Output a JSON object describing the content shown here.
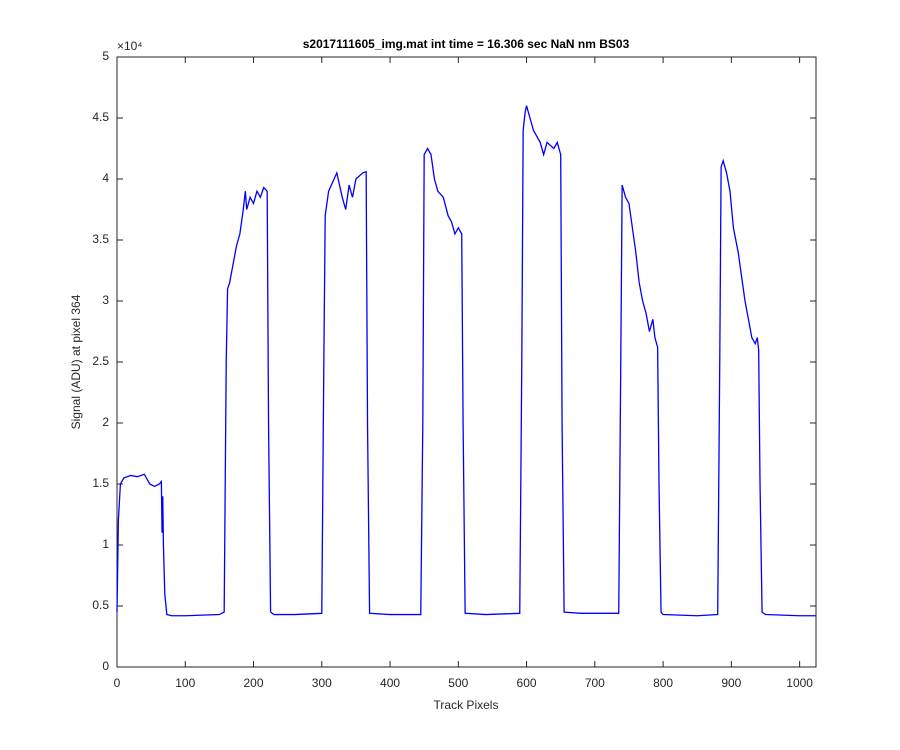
{
  "chart_data": {
    "type": "line",
    "title": "s2017111605_img.mat int time = 16.306 sec  NaN nm BS03",
    "x_label": "Track Pixels",
    "y_label": "Signal (ADU) at pixel 364",
    "y_multiplier": "×10⁴",
    "xlim": [
      0,
      1024
    ],
    "ylim": [
      0,
      5
    ],
    "xticks": [
      0,
      100,
      200,
      300,
      400,
      500,
      600,
      700,
      800,
      900,
      1000
    ],
    "yticks": [
      0,
      0.5,
      1,
      1.5,
      2,
      2.5,
      3,
      3.5,
      4,
      4.5,
      5
    ],
    "grid": false,
    "x": [
      0,
      2,
      5,
      10,
      20,
      30,
      40,
      48,
      55,
      62,
      65,
      66,
      67,
      68,
      70,
      73,
      80,
      100,
      150,
      157,
      160,
      162,
      165,
      170,
      175,
      180,
      185,
      188,
      190,
      195,
      200,
      205,
      210,
      215,
      220,
      222,
      225,
      230,
      260,
      300,
      303,
      305,
      310,
      318,
      322,
      330,
      335,
      340,
      345,
      350,
      360,
      365,
      367,
      370,
      400,
      445,
      448,
      450,
      455,
      460,
      465,
      470,
      478,
      485,
      490,
      495,
      500,
      505,
      507,
      510,
      540,
      590,
      593,
      595,
      598,
      600,
      605,
      610,
      615,
      620,
      625,
      630,
      640,
      645,
      650,
      652,
      655,
      680,
      735,
      738,
      740,
      745,
      750,
      755,
      760,
      765,
      770,
      775,
      780,
      785,
      788,
      792,
      794,
      797,
      800,
      850,
      880,
      883,
      885,
      888,
      893,
      898,
      903,
      910,
      915,
      920,
      925,
      930,
      935,
      938,
      940,
      942,
      945,
      950,
      1000,
      1024
    ],
    "series": [
      {
        "color": "#0000ff",
        "values": [
          0.45,
          1.2,
          1.5,
          1.55,
          1.57,
          1.56,
          1.58,
          1.5,
          1.48,
          1.5,
          1.52,
          1.1,
          1.4,
          1.0,
          0.6,
          0.43,
          0.42,
          0.42,
          0.43,
          0.45,
          2.5,
          3.1,
          3.15,
          3.3,
          3.45,
          3.55,
          3.75,
          3.9,
          3.75,
          3.85,
          3.8,
          3.9,
          3.85,
          3.93,
          3.9,
          2.0,
          0.45,
          0.43,
          0.43,
          0.44,
          2.5,
          3.7,
          3.9,
          4.0,
          4.05,
          3.85,
          3.75,
          3.95,
          3.85,
          4.0,
          4.05,
          4.06,
          2.0,
          0.44,
          0.43,
          0.43,
          2.0,
          4.2,
          4.25,
          4.2,
          4.0,
          3.9,
          3.85,
          3.7,
          3.65,
          3.55,
          3.6,
          3.55,
          2.0,
          0.44,
          0.43,
          0.44,
          2.5,
          4.4,
          4.55,
          4.6,
          4.5,
          4.4,
          4.35,
          4.3,
          4.2,
          4.3,
          4.25,
          4.3,
          4.2,
          2.0,
          0.45,
          0.44,
          0.44,
          2.5,
          3.95,
          3.85,
          3.8,
          3.6,
          3.4,
          3.15,
          3.0,
          2.9,
          2.75,
          2.85,
          2.7,
          2.62,
          1.5,
          0.45,
          0.43,
          0.42,
          0.43,
          2.5,
          4.1,
          4.15,
          4.05,
          3.9,
          3.6,
          3.4,
          3.2,
          3.0,
          2.85,
          2.7,
          2.65,
          2.7,
          2.6,
          1.5,
          0.45,
          0.43,
          0.42,
          0.42
        ]
      }
    ]
  }
}
